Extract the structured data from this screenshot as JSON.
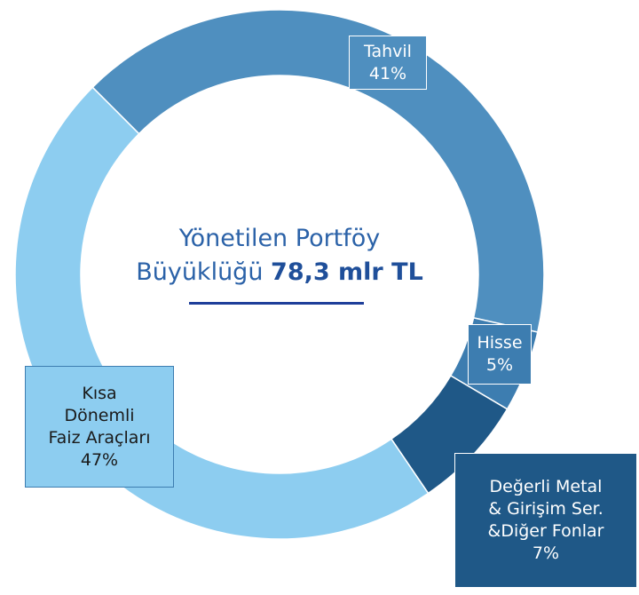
{
  "chart_data": {
    "type": "donut",
    "center_lines": [
      "Yönetilen Portföy",
      "Büyüklüğü"
    ],
    "total": "78,3 mlr TL",
    "categories": [
      "Tahvil",
      "Hisse",
      "Değerli Metal\n& Girişim Ser.\n&Diğer Fonlar",
      "Kısa\nDönemli\nFaiz Araçları"
    ],
    "values": [
      41,
      5,
      7,
      47
    ],
    "value_labels": [
      "41%",
      "5%",
      "7%",
      "47%"
    ],
    "colors": [
      "#4f8fbf",
      "#3d7db0",
      "#1f5887",
      "#8dcdf0"
    ]
  }
}
